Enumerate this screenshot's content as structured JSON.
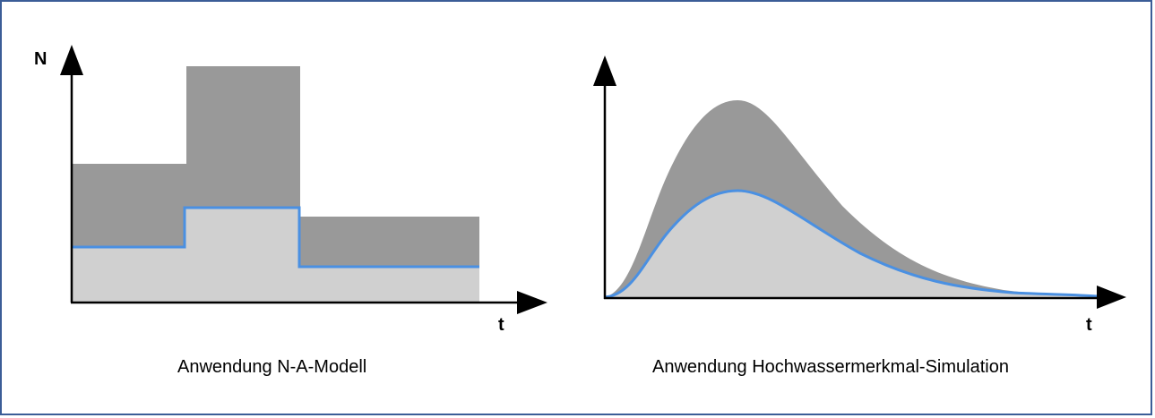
{
  "colors": {
    "border": "#3b5d97",
    "upper_area": "#999999",
    "lower_area": "#d0d0d0",
    "line": "#4a90e2",
    "axis": "#000000"
  },
  "left_panel": {
    "y_axis_label": "N",
    "x_axis_label": "t",
    "caption": "Anwendung N-A-Modell"
  },
  "right_panel": {
    "x_axis_label": "t",
    "caption": "Anwendung Hochwassermerkmal-Simulation"
  }
}
